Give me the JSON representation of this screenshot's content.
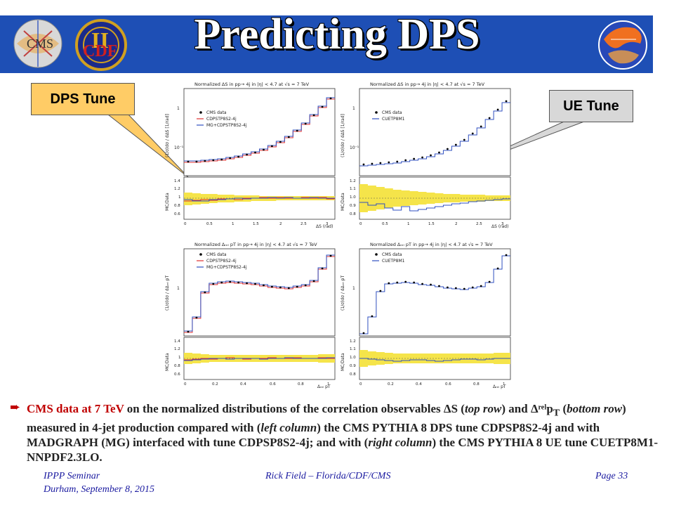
{
  "slide": {
    "title": "Predicting DPS",
    "logos": {
      "left1": "CMS",
      "left2_roman": "II",
      "left2_text": "CDF"
    },
    "callouts": {
      "left": "DPS Tune",
      "right": "UE Tune"
    }
  },
  "panels": {
    "top_left": {
      "header": "Normalized ΔS in pp→ 4j in |η| < 4.7 at √s = 7 TeV",
      "ylabel_top": "(1/σ)dσ / dΔS [1/rad]",
      "ylabel_ratio": "MC/Data",
      "xlabel": "ΔS (rad)",
      "legend": [
        "CMS data",
        "CDPSTP8S2-4j",
        "MG+CDPSTP8S2-4j"
      ],
      "top_ticks": [
        "1",
        "10⁻¹"
      ],
      "ratio_ticks": [
        "1.4",
        "1.2",
        "1",
        "0.8",
        "0.6"
      ],
      "x_ticks": [
        "0",
        "0.5",
        "1",
        "1.5",
        "2",
        "2.5",
        "3"
      ]
    },
    "top_right": {
      "header": "Normalized ΔS in pp→ 4j in |η| < 4.7 at √s = 7 TeV",
      "ylabel_top": "(1/σ)dσ / dΔS [1/rad]",
      "ylabel_ratio": "MC/Data",
      "xlabel": "ΔS (rad)",
      "legend": [
        "CMS data",
        "CUETP8M1"
      ],
      "top_ticks": [
        "1",
        "10⁻¹"
      ],
      "ratio_ticks": [
        "1.2",
        "1.1",
        "1.0",
        "0.9",
        "0.8"
      ],
      "x_ticks": [
        "0",
        "0.5",
        "1",
        "1.5",
        "2",
        "2.5",
        "3"
      ]
    },
    "bottom_left": {
      "header": "Normalized Δᵣₑₗ pT in pp→ 4j in |η| < 4.7 at √s = 7 TeV",
      "ylabel_top": "(1/σ)dσ / dΔᵣₑₗ pT",
      "ylabel_ratio": "MC/Data",
      "xlabel": "Δᵣₑₗ pT",
      "legend": [
        "CMS data",
        "CDPSTP8S2-4j",
        "MG+CDPSTP8S2-4j"
      ],
      "top_ticks": [
        "1"
      ],
      "ratio_ticks": [
        "1.4",
        "1.2",
        "1",
        "0.8",
        "0.6"
      ],
      "x_ticks": [
        "0",
        "0.2",
        "0.4",
        "0.6",
        "0.8",
        "1"
      ]
    },
    "bottom_right": {
      "header": "Normalized Δᵣₑₗ pT in pp→ 4j in |η| < 4.7 at √s = 7 TeV",
      "ylabel_top": "(1/σ)dσ / dΔᵣₑₗ pT",
      "ylabel_ratio": "MC/Data",
      "xlabel": "Δᵣₑₗ pT",
      "legend": [
        "CMS data",
        "CUETP8M1"
      ],
      "top_ticks": [
        "1"
      ],
      "ratio_ticks": [
        "1.2",
        "1.1",
        "1.0",
        "0.9",
        "0.8"
      ],
      "x_ticks": [
        "0",
        "0.2",
        "0.4",
        "0.6",
        "0.8",
        "1"
      ]
    }
  },
  "bullet": {
    "highlight": "CMS data at 7 TeV",
    "part1": " on the normalized distributions of the correlation observables ΔS (",
    "top_row": "top row",
    "part2": ") and Δʳᵉˡp",
    "pt_sub": "T",
    "part3": " (",
    "bottom_row": "bottom row",
    "part4": ") measured in 4-jet production compared with (",
    "left_column": "left column",
    "part5": ") the CMS PYTHIA 8 DPS tune CDPSP8S2-4j and with MADGRAPH (MG) interfaced with tune CDPSP8S2-4j; and with (",
    "right_column": "right column",
    "part6": ") the CMS PYTHIA 8 UE tune CUETP8M1-NNPDF2.3LO."
  },
  "footer": {
    "left_line1": "IPPP Seminar",
    "left_line2": "Durham, September 8, 2015",
    "center": "Rick Field – Florida/CDF/CMS",
    "right": "Page 33"
  },
  "colors": {
    "banner": "#1e4fb5",
    "callout_fill": "#ffcc66",
    "red": "#c00000",
    "yellow_band": "#f5e44a",
    "mc_red": "#e03030",
    "mc_blue": "#3050c0",
    "footer_text": "#1a1aa0"
  }
}
